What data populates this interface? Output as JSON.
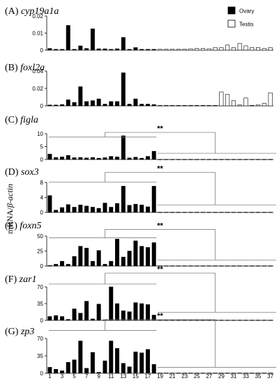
{
  "chart_data": {
    "type": "bar",
    "ylabel_prefix": "mRNA/",
    "ylabel_italic": "β-actin",
    "legend": [
      {
        "name": "Ovary",
        "fill": "#000000"
      },
      {
        "name": "Testis",
        "fill": "#ffffff"
      }
    ],
    "x_ticks": [
      "1",
      "3",
      "5",
      "7",
      "9",
      "11",
      "13",
      "15",
      "17",
      "19",
      "21",
      "23",
      "25",
      "27",
      "29",
      "31",
      "33",
      "35",
      "37"
    ],
    "significance": "**",
    "colors": {
      "ovary": "#000000",
      "testis": "#ffffff",
      "line": "#000000",
      "bracket": "#808080"
    },
    "panels": [
      {
        "letter": "(A) ",
        "gene": "cyp19a1a",
        "y_ticks": [
          "0.02",
          "0.01",
          "0"
        ],
        "ylim": [
          0,
          0.02
        ],
        "ovary": [
          0.001,
          0.0005,
          0.0005,
          0.0145,
          0.0005,
          0.0025,
          0.001,
          0.0125,
          0.0008,
          0.0008,
          0.0005,
          0.0008,
          0.0075,
          0.0005,
          0.0015,
          0.0005,
          0.0005,
          0.0005
        ],
        "testis": [
          0.0005,
          0.0005,
          0.0005,
          0.0005,
          0.0005,
          0.0008,
          0.001,
          0.001,
          0.0008,
          0.0015,
          0.0015,
          0.003,
          0.0015,
          0.004,
          0.0025,
          0.0015,
          0.0015,
          0.001,
          0.0015
        ]
      },
      {
        "letter": "(B) ",
        "gene": "foxl2a",
        "y_ticks": [
          "0.04",
          "0.02",
          "0"
        ],
        "ylim": [
          0,
          0.04
        ],
        "ovary": [
          0.001,
          0.001,
          0.0015,
          0.007,
          0.004,
          0.022,
          0.005,
          0.006,
          0.008,
          0.002,
          0.005,
          0.005,
          0.038,
          0.002,
          0.008,
          0.002,
          0.002,
          0.0015
        ],
        "testis": [
          0.0005,
          0.0005,
          0.0005,
          0.0005,
          0.0005,
          0.0005,
          0.0005,
          0.0005,
          0.0005,
          0.0005,
          0.016,
          0.013,
          0.006,
          0.001,
          0.009,
          0.0005,
          0.001,
          0.003,
          0.015
        ]
      },
      {
        "letter": "(C) ",
        "gene": "figla",
        "y_ticks": [
          "10",
          "5",
          "0"
        ],
        "ylim": [
          0,
          10
        ],
        "ovary": [
          2.1,
          0.8,
          1.0,
          1.6,
          0.7,
          0.8,
          0.6,
          0.8,
          0.5,
          0.7,
          1.2,
          1.0,
          9.2,
          0.6,
          0.9,
          0.5,
          1.2,
          3.2
        ],
        "testis": [
          0.05,
          0.05,
          0.05,
          0.05,
          0.05,
          0.05,
          0.05,
          0.05,
          0.05,
          0.05,
          0.05,
          0.05,
          0.05,
          0.05,
          0.05,
          0.05,
          0.05,
          0.05,
          0.05
        ],
        "brackets": {
          "left_level": 8.7,
          "mid_level": 10.5,
          "right_level": 2.4
        }
      },
      {
        "letter": "(D) ",
        "gene": "sox3",
        "y_ticks": [
          "8",
          "4",
          "0"
        ],
        "ylim": [
          0,
          8
        ],
        "ovary": [
          4.5,
          0.6,
          1.3,
          2.1,
          1.4,
          2.0,
          1.7,
          1.4,
          1.1,
          2.5,
          1.4,
          2.4,
          7.0,
          1.9,
          2.2,
          2.0,
          1.5,
          7.0
        ],
        "testis": [
          0.05,
          0.05,
          0.05,
          0.05,
          0.05,
          0.05,
          0.05,
          0.05,
          0.05,
          0.05,
          0.05,
          0.05,
          0.05,
          0.05,
          0.05,
          0.05,
          0.05,
          0.05,
          0.05
        ],
        "brackets": {
          "left_level": 8.1,
          "mid_level": 10.7,
          "right_level": 2.0
        }
      },
      {
        "letter": "(E) ",
        "gene": "foxn5",
        "y_ticks": [
          "50",
          "25",
          "0"
        ],
        "ylim": [
          0,
          50
        ],
        "ovary": [
          1,
          3,
          8,
          3,
          16,
          33,
          30,
          8,
          26,
          3,
          8,
          45,
          15,
          25,
          42,
          33,
          31,
          39
        ],
        "testis": [
          0.4,
          0.4,
          0.4,
          0.4,
          0.4,
          0.4,
          0.4,
          0.4,
          0.4,
          0.4,
          0.4,
          0.4,
          0.4,
          0.4,
          0.4,
          0.4,
          0.4,
          0.4,
          0.4
        ],
        "brackets": {
          "left_level": 47,
          "mid_level": 61,
          "right_level": 10
        }
      },
      {
        "letter": "(F) ",
        "gene": "zar1",
        "y_ticks": [
          "70",
          "35",
          "0"
        ],
        "ylim": [
          0,
          70
        ],
        "ovary": [
          8,
          10,
          8,
          2,
          24,
          15,
          40,
          3,
          34,
          1,
          70,
          35,
          20,
          18,
          37,
          35,
          33,
          11
        ],
        "testis": [
          0.5,
          0.5,
          0.5,
          0.5,
          0.5,
          0.5,
          0.5,
          0.5,
          0.5,
          0.5,
          0.5,
          0.5,
          0.5,
          0.5,
          0.5,
          0.5,
          0.5,
          0.5,
          0.5
        ],
        "brackets": {
          "left_level": 76,
          "mid_level": 99,
          "right_level": 17
        }
      },
      {
        "letter": "(G) ",
        "gene": "zp3",
        "y_ticks": [
          "70",
          "35",
          "0"
        ],
        "ylim": [
          0,
          70
        ],
        "ovary": [
          12,
          8,
          5,
          22,
          27,
          65,
          10,
          42,
          2,
          25,
          65,
          50,
          20,
          13,
          43,
          41,
          48,
          18
        ],
        "testis": [
          0.5,
          0.5,
          0.5,
          0.5,
          0.5,
          0.5,
          0.5,
          0.5,
          0.5,
          0.5,
          0.5,
          0.5,
          0.5,
          0.5,
          0.5,
          0.5,
          0.5,
          0.5,
          0.5
        ],
        "brackets": {
          "left_level": 86,
          "mid_level": 108,
          "right_level": 12
        }
      }
    ]
  }
}
